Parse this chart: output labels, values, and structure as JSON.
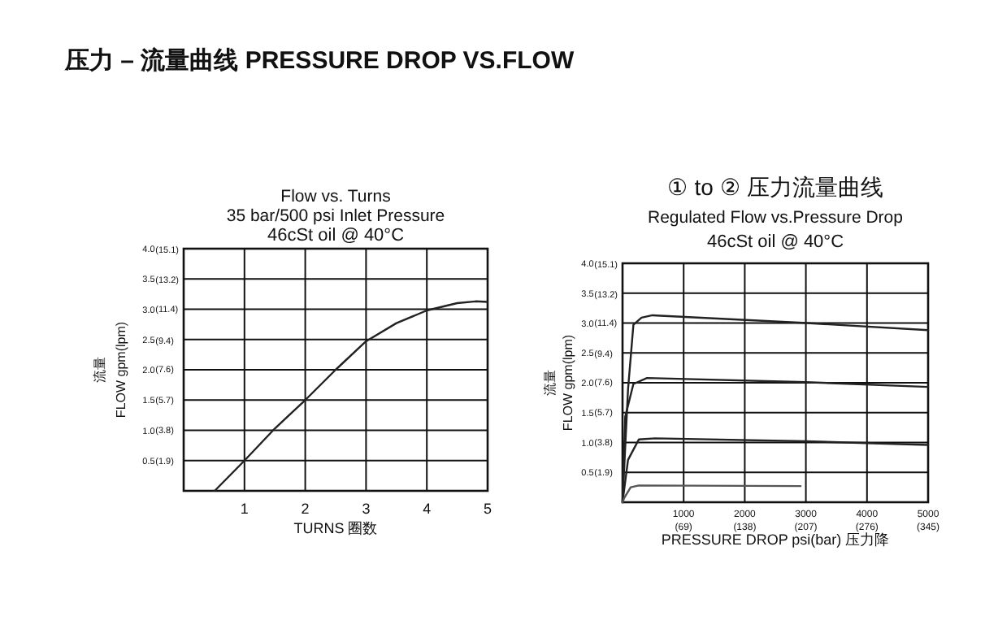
{
  "chart_data": [
    {
      "type": "other",
      "title": "压力 – 流量曲线 PRESSURE DROP VS.FLOW"
    },
    {
      "type": "line",
      "title": "Flow vs. Turns",
      "subtitle": "35 bar/500 psi Inlet Pressure",
      "annotations": [
        "46cSt oil @ 40°C"
      ],
      "xlabel": "TURNS 圈数",
      "ylabel": "流量\nFLOW  gpm(lpm)",
      "xlim": [
        0,
        5
      ],
      "ylim": [
        0,
        4
      ],
      "y2lim": [
        0,
        15.14
      ],
      "grid": true,
      "xticks": [
        1,
        2,
        3,
        4,
        5
      ],
      "yticks": [
        {
          "value": 0.5,
          "label": "0.5"
        },
        {
          "value": 1,
          "label": "1.0"
        },
        {
          "value": 1.5,
          "label": "1.5"
        },
        {
          "value": 2,
          "label": "2.0"
        },
        {
          "value": 2.5,
          "label": "2.5"
        },
        {
          "value": 3,
          "label": "3.0"
        },
        {
          "value": 3.5,
          "label": "3.5"
        },
        {
          "value": 4,
          "label": "4.0"
        }
      ],
      "y2ticks": [
        {
          "value": 1.9,
          "label": "(1.9)"
        },
        {
          "value": 3.8,
          "label": "(3.8)"
        },
        {
          "value": 5.7,
          "label": "(5.7)"
        },
        {
          "value": 7.6,
          "label": "(7.6)"
        },
        {
          "value": 9.4,
          "label": "(9.4)"
        },
        {
          "value": 11.4,
          "label": "(11.4)"
        },
        {
          "value": 13.2,
          "label": "(13.2)"
        },
        {
          "value": 15.1,
          "label": "(15.1)"
        }
      ],
      "series": [
        {
          "color": "#222222",
          "x": [
            0.51,
            1,
            1.5,
            2,
            2.5,
            3,
            3.5,
            4,
            4.5,
            4.8,
            5
          ],
          "values": [
            0,
            0.5,
            1.03,
            1.5,
            2.0,
            2.47,
            2.77,
            2.98,
            3.1,
            3.13,
            3.12
          ]
        }
      ]
    },
    {
      "type": "line",
      "title": "① to ② 压力流量曲线",
      "subtitle": "Regulated Flow vs.Pressure Drop",
      "annotations": [
        "46cSt oil @ 40°C"
      ],
      "xlabel": "PRESSURE DROP psi(bar)  压力降",
      "ylabel": "流量\nFLOW  gpm(lpm)",
      "xlim": [
        0,
        5000
      ],
      "ylim": [
        0,
        4
      ],
      "x2lim": [
        0,
        345
      ],
      "y2lim": [
        0,
        15.14
      ],
      "grid": true,
      "xticks": [
        1000,
        2000,
        3000,
        4000,
        5000
      ],
      "x2ticks": [
        {
          "value": 69,
          "label": "(69)"
        },
        {
          "value": 138,
          "label": "(138)"
        },
        {
          "value": 207,
          "label": "(207)"
        },
        {
          "value": 276,
          "label": "(276)"
        },
        {
          "value": 345,
          "label": "(345)"
        }
      ],
      "yticks": [
        {
          "value": 0.5,
          "label": "0.5"
        },
        {
          "value": 1,
          "label": "1.0"
        },
        {
          "value": 1.5,
          "label": "1.5"
        },
        {
          "value": 2,
          "label": "2.0"
        },
        {
          "value": 2.5,
          "label": "2.5"
        },
        {
          "value": 3,
          "label": "3.0"
        },
        {
          "value": 3.5,
          "label": "3.5"
        },
        {
          "value": 4,
          "label": "4.0"
        }
      ],
      "y2ticks": [
        {
          "value": 1.9,
          "label": "(1.9)"
        },
        {
          "value": 3.8,
          "label": "(3.8)"
        },
        {
          "value": 5.7,
          "label": "(5.7)"
        },
        {
          "value": 7.6,
          "label": "(7.6)"
        },
        {
          "value": 9.4,
          "label": "(9.4)"
        },
        {
          "value": 11.4,
          "label": "(11.4)"
        },
        {
          "value": 13.2,
          "label": "(13.2)"
        },
        {
          "value": 15.1,
          "label": "(15.1)"
        }
      ],
      "series": [
        {
          "color": "#222222",
          "x": [
            0,
            90,
            178,
            310,
            490,
            3020,
            5000
          ],
          "values": [
            0,
            1.89,
            2.97,
            3.09,
            3.13,
            3.0,
            2.88
          ]
        },
        {
          "color": "#222222",
          "x": [
            0,
            44,
            178,
            400,
            3000,
            5000
          ],
          "values": [
            0,
            1.43,
            1.98,
            2.08,
            2.01,
            1.93
          ]
        },
        {
          "color": "#222222",
          "x": [
            0,
            90,
            266,
            533,
            3000,
            5000
          ],
          "values": [
            0,
            0.71,
            1.05,
            1.07,
            1.02,
            0.96
          ]
        },
        {
          "color": "#555555",
          "x": [
            0,
            27,
            133,
            266,
            2913
          ],
          "values": [
            0,
            0.07,
            0.25,
            0.28,
            0.27
          ]
        }
      ]
    }
  ]
}
